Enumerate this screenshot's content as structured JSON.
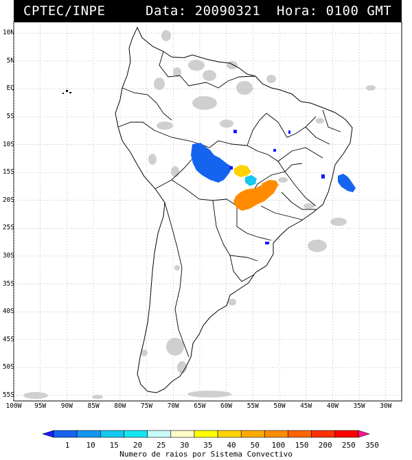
{
  "header": {
    "source": "CPTEC/INPE",
    "date_label": "Data: 20090321",
    "time_label": "Hora: 0100 GMT"
  },
  "axes": {
    "lat_labels": [
      "10N",
      "5N",
      "EQ",
      "5S",
      "10S",
      "15S",
      "20S",
      "25S",
      "30S",
      "35S",
      "40S",
      "45S",
      "50S",
      "55S"
    ],
    "lon_labels": [
      "100W",
      "95W",
      "90W",
      "85W",
      "80W",
      "75W",
      "70W",
      "65W",
      "60W",
      "55W",
      "50W",
      "45W",
      "40W",
      "35W",
      "30W"
    ],
    "lat_values": [
      10,
      5,
      0,
      -5,
      -10,
      -15,
      -20,
      -25,
      -30,
      -35,
      -40,
      -45,
      -50,
      -55
    ],
    "lon_values": [
      -100,
      -95,
      -90,
      -85,
      -80,
      -75,
      -70,
      -65,
      -60,
      -55,
      -50,
      -45,
      -40,
      -35,
      -30
    ],
    "lat_range": [
      -56,
      12
    ],
    "lon_range": [
      -100,
      -27
    ]
  },
  "colorbar": {
    "labels": [
      "1",
      "10",
      "15",
      "20",
      "25",
      "30",
      "35",
      "40",
      "50",
      "100",
      "150",
      "200",
      "250",
      "350"
    ],
    "colors": [
      "#1a1aff",
      "#1464f0",
      "#1496f0",
      "#14c8f0",
      "#14e6f0",
      "#c8fafa",
      "#fffac8",
      "#ffff00",
      "#ffd200",
      "#ffaa00",
      "#ff8c00",
      "#ff6400",
      "#ff3200",
      "#ff0000",
      "#ff1493"
    ],
    "caption": "Numero de raios por Sistema Convectivo"
  },
  "colors": {
    "land_outline": "#000000",
    "cloud": "#cfcfcf",
    "grid": "#9a9a9a"
  }
}
